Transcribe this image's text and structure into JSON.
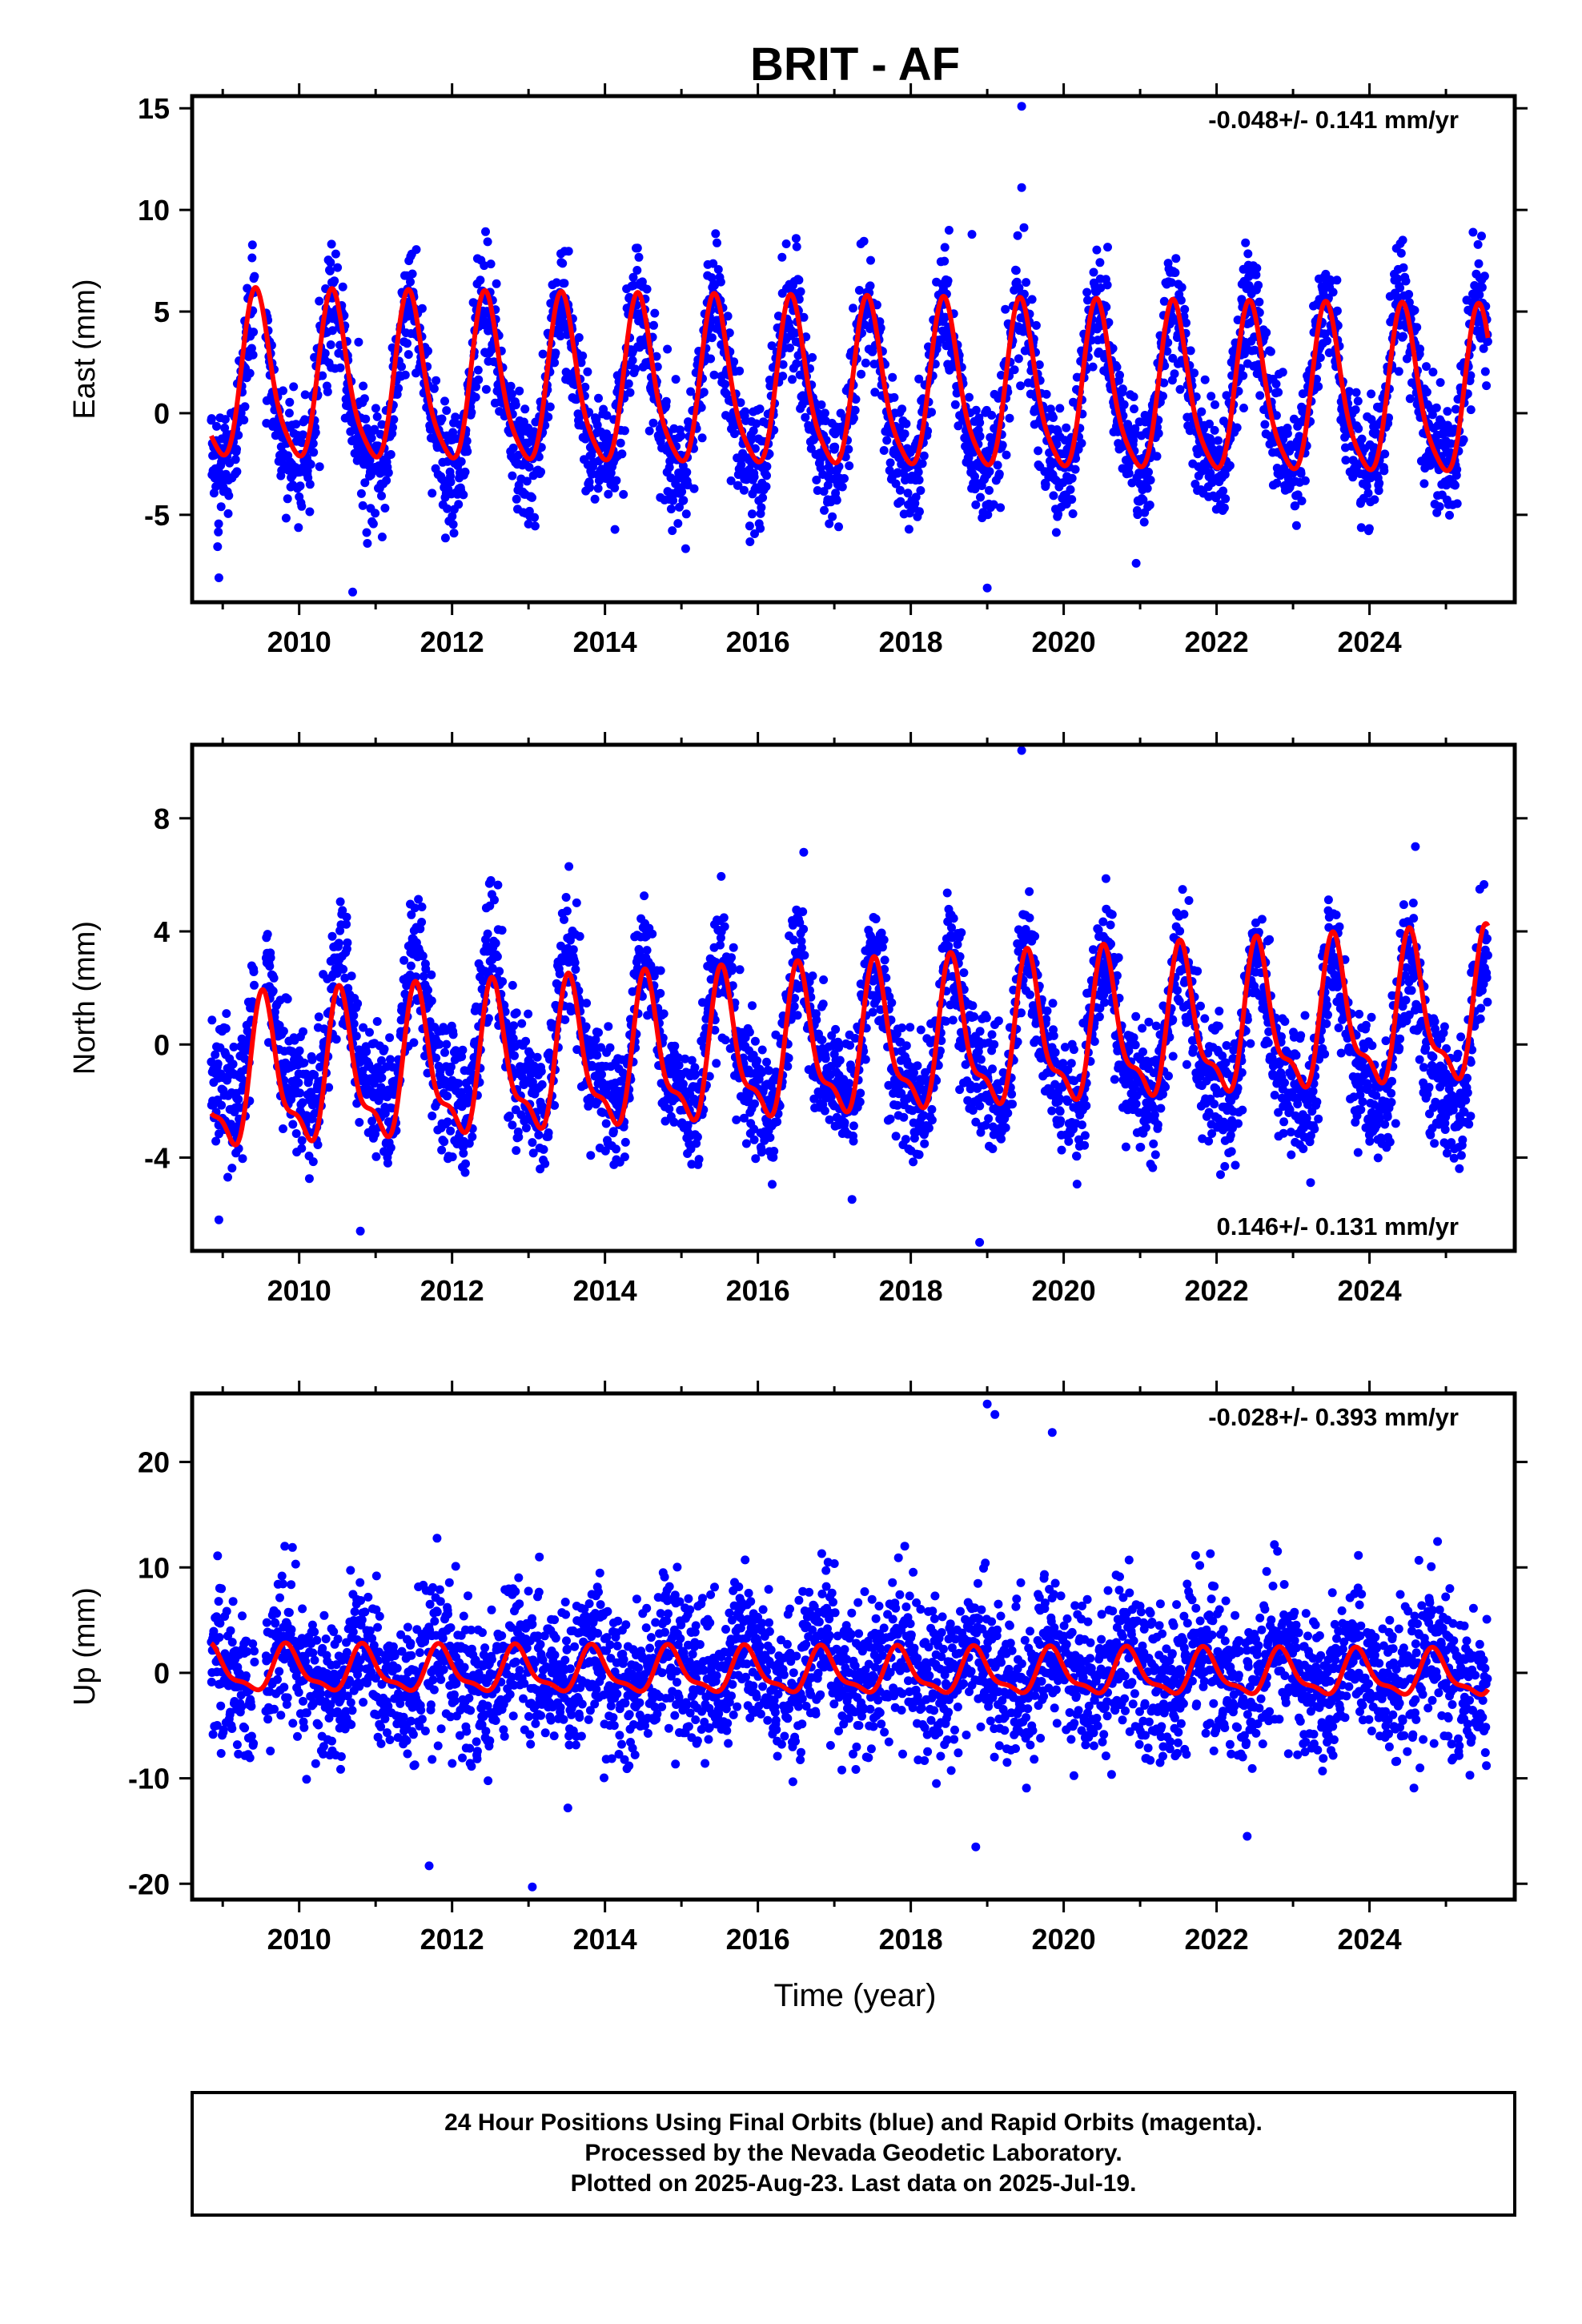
{
  "title": "BRIT - AF",
  "x_label": "Time (year)",
  "footer": {
    "line1": "24 Hour Positions Using Final Orbits (blue) and Rapid Orbits (magenta).",
    "line2": "Processed by the Nevada Geodetic Laboratory.",
    "line3": "Plotted on 2025-Aug-23. Last data on 2025-Jul-19."
  },
  "colors": {
    "points": "#0000ff",
    "model": "#ff0000",
    "frame": "#000000"
  },
  "chart_data": [
    {
      "type": "scatter",
      "ylabel": "East (mm)",
      "rate_text": "-0.048+/- 0.141 mm/yr",
      "rate_position": "top-right",
      "xlim": [
        2008.6,
        2025.9
      ],
      "ylim": [
        -9.3,
        15.6
      ],
      "x_ticks": [
        2010,
        2012,
        2014,
        2016,
        2018,
        2020,
        2022,
        2024
      ],
      "y_ticks": [
        -5,
        0,
        5,
        10,
        15
      ],
      "series": [
        {
          "kind": "points",
          "x_start": 2008.85,
          "x_end": 2025.55,
          "amplitude": 4.0,
          "phase_peak": 0.45,
          "harmonic2": 0.8,
          "noise": 1.4,
          "outliers": [
            [
              2019.45,
              15.1
            ],
            [
              2019.45,
              11.1
            ],
            [
              2018.5,
              9.0
            ],
            [
              2018.8,
              8.8
            ],
            [
              2016.5,
              8.6
            ],
            [
              2010.7,
              -8.8
            ],
            [
              2008.95,
              -8.1
            ],
            [
              2019.0,
              -8.6
            ]
          ]
        },
        {
          "kind": "model",
          "amplitude": 4.0,
          "phase_peak": 0.45,
          "harmonic2": 0.8,
          "trend": -0.048,
          "offset": 1.1
        }
      ]
    },
    {
      "type": "scatter",
      "ylabel": "North (mm)",
      "rate_text": "0.146+/- 0.131 mm/yr",
      "rate_position": "bottom-right",
      "xlim": [
        2008.6,
        2025.9
      ],
      "ylim": [
        -7.3,
        10.6
      ],
      "x_ticks": [
        2010,
        2012,
        2014,
        2016,
        2018,
        2020,
        2022,
        2024
      ],
      "y_ticks": [
        -4,
        0,
        4,
        8
      ],
      "series": [
        {
          "kind": "points",
          "x_start": 2008.85,
          "x_end": 2025.55,
          "amplitude": 2.4,
          "phase_peak": 0.55,
          "harmonic2": 0.9,
          "noise": 1.1,
          "outliers": [
            [
              2019.45,
              10.4
            ],
            [
              2018.9,
              -7.0
            ],
            [
              2010.8,
              -6.6
            ],
            [
              2008.95,
              -6.2
            ],
            [
              2016.6,
              6.8
            ],
            [
              2024.6,
              7.0
            ]
          ]
        },
        {
          "kind": "model",
          "amplitude": 2.4,
          "phase_peak": 0.55,
          "harmonic2": 0.9,
          "trend": 0.146,
          "offset": -0.2
        }
      ]
    },
    {
      "type": "scatter",
      "ylabel": "Up (mm)",
      "rate_text": "-0.028+/- 0.393 mm/yr",
      "rate_position": "top-right",
      "xlim": [
        2008.6,
        2025.9
      ],
      "ylim": [
        -21.5,
        26.5
      ],
      "x_ticks": [
        2010,
        2012,
        2014,
        2016,
        2018,
        2020,
        2022,
        2024
      ],
      "y_ticks": [
        -20,
        -10,
        0,
        10,
        20
      ],
      "series": [
        {
          "kind": "points",
          "x_start": 2008.85,
          "x_end": 2025.55,
          "amplitude": 2.0,
          "phase_peak": 0.85,
          "harmonic2": 0.7,
          "noise": 3.6,
          "outliers": [
            [
              2019.0,
              25.5
            ],
            [
              2019.85,
              22.8
            ],
            [
              2019.1,
              24.5
            ],
            [
              2013.05,
              -20.3
            ],
            [
              2011.7,
              -18.3
            ],
            [
              2018.85,
              -16.5
            ],
            [
              2022.4,
              -15.5
            ]
          ]
        },
        {
          "kind": "model",
          "amplitude": 2.0,
          "phase_peak": 0.85,
          "harmonic2": 0.7,
          "trend": -0.028,
          "offset": 0.0
        }
      ]
    }
  ]
}
